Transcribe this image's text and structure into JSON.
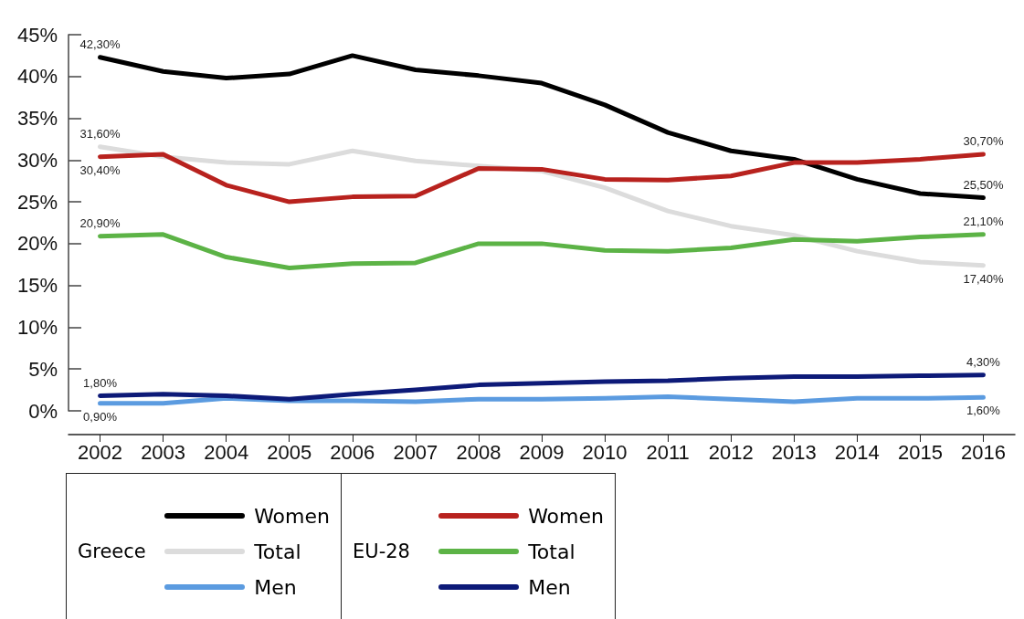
{
  "chart_data": {
    "type": "line",
    "categories": [
      "2002",
      "2003",
      "2004",
      "2005",
      "2006",
      "2007",
      "2008",
      "2009",
      "2010",
      "2011",
      "2012",
      "2013",
      "2014",
      "2015",
      "2016"
    ],
    "ylim": [
      0,
      45
    ],
    "yticks": [
      {
        "value": 0,
        "label": "0%"
      },
      {
        "value": 5,
        "label": "5%"
      },
      {
        "value": 10,
        "label": "10%"
      },
      {
        "value": 15,
        "label": "15%"
      },
      {
        "value": 20,
        "label": "20%"
      },
      {
        "value": 25,
        "label": "25%"
      },
      {
        "value": 30,
        "label": "30%"
      },
      {
        "value": 35,
        "label": "35%"
      },
      {
        "value": 40,
        "label": "40%"
      },
      {
        "value": 45,
        "label": "45%"
      }
    ],
    "grid": false,
    "legend": "bottom left",
    "marker": "none",
    "line_style": "solid",
    "annotations": [
      "Greece",
      "EU-28"
    ],
    "series": [
      {
        "name": "Women",
        "color": "#000000",
        "values": [
          42.3,
          40.6,
          39.8,
          40.3,
          42.5,
          40.8,
          40.1,
          39.2,
          36.6,
          33.3,
          31.1,
          30.1,
          27.7,
          26.0,
          25.5
        ],
        "value_labels": [
          "42,30%",
          null,
          null,
          null,
          null,
          null,
          null,
          null,
          null,
          null,
          null,
          null,
          null,
          null,
          "25,50%"
        ]
      },
      {
        "name": "Total",
        "color": "#dcdcdc",
        "values": [
          31.6,
          30.4,
          29.7,
          29.5,
          31.1,
          29.9,
          29.3,
          28.7,
          26.7,
          23.9,
          22.1,
          21.0,
          19.1,
          17.8,
          17.4
        ],
        "value_labels": [
          "31,60%",
          null,
          null,
          null,
          null,
          null,
          null,
          null,
          null,
          null,
          null,
          null,
          null,
          null,
          "17,40%"
        ]
      },
      {
        "name": "Men",
        "color": "#5b9be0",
        "values": [
          0.9,
          0.9,
          1.5,
          1.2,
          1.2,
          1.1,
          1.4,
          1.4,
          1.5,
          1.7,
          1.4,
          1.1,
          1.5,
          1.5,
          1.6
        ],
        "value_labels": [
          "0,90%",
          null,
          null,
          null,
          null,
          null,
          null,
          null,
          null,
          null,
          null,
          null,
          null,
          null,
          "1,60%"
        ]
      },
      {
        "name": "Women",
        "color": "#b8221e",
        "values": [
          30.4,
          30.7,
          27.0,
          25.0,
          25.6,
          25.7,
          29.0,
          28.9,
          27.7,
          27.6,
          28.1,
          29.7,
          29.7,
          30.1,
          30.7
        ],
        "value_labels": [
          "30,40%",
          null,
          null,
          null,
          null,
          null,
          null,
          null,
          null,
          null,
          null,
          null,
          null,
          null,
          "30,70%"
        ]
      },
      {
        "name": "Total",
        "color": "#5cb346",
        "values": [
          20.9,
          21.1,
          18.4,
          17.1,
          17.6,
          17.7,
          20.0,
          20.0,
          19.2,
          19.1,
          19.5,
          20.5,
          20.3,
          20.8,
          21.1
        ],
        "value_labels": [
          "20,90%",
          null,
          null,
          null,
          null,
          null,
          null,
          null,
          null,
          null,
          null,
          null,
          null,
          null,
          "21,10%"
        ]
      },
      {
        "name": "Men",
        "color": "#0d1a78",
        "values": [
          1.8,
          2.0,
          1.8,
          1.4,
          2.0,
          2.5,
          3.1,
          3.3,
          3.5,
          3.6,
          3.9,
          4.1,
          4.1,
          4.2,
          4.3
        ],
        "value_labels": [
          "1,80%",
          null,
          null,
          null,
          null,
          null,
          null,
          null,
          null,
          null,
          null,
          null,
          null,
          null,
          "4,30%"
        ]
      }
    ]
  }
}
